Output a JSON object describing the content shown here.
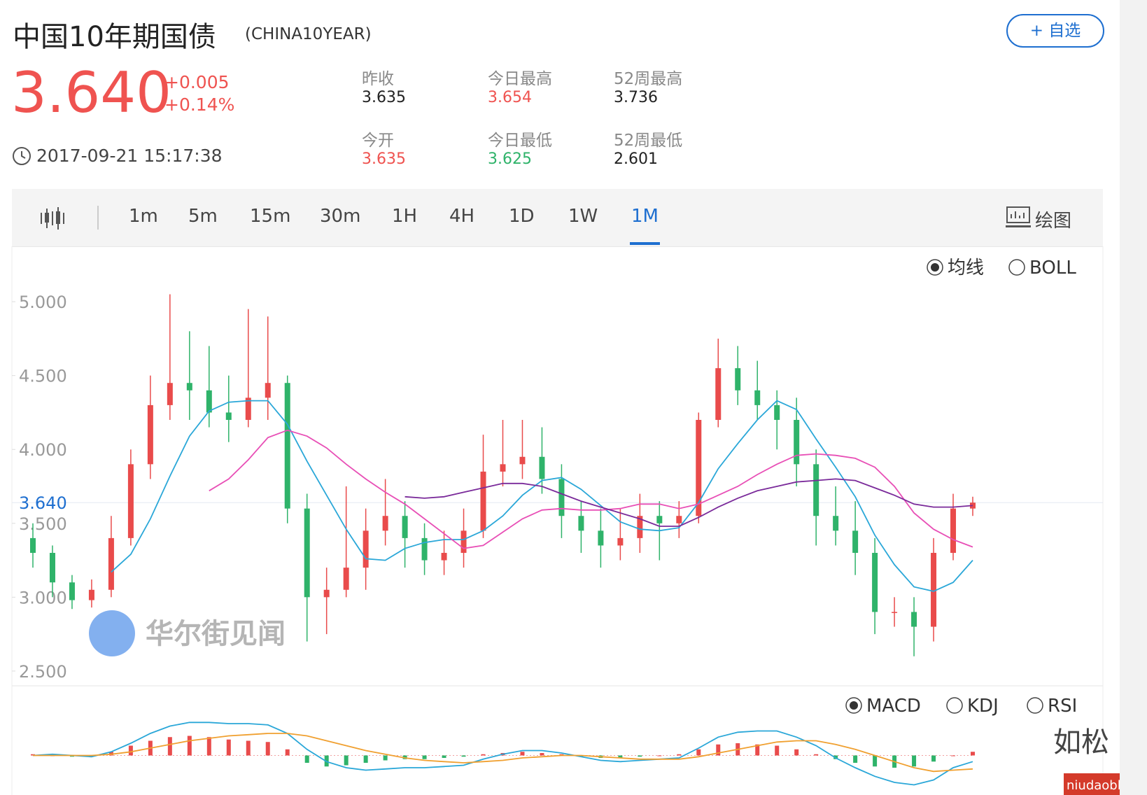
{
  "header": {
    "title": "中国10年期国债",
    "code": "(CHINA10YEAR)",
    "price": "3.640",
    "change": "+0.005",
    "change_pct": "+0.14%",
    "time": "2017-09-21 15:17:38",
    "add_button": "+ 自选",
    "stats": [
      {
        "label": "昨收",
        "value": "3.635"
      },
      {
        "label": "今日最高",
        "value": "3.654"
      },
      {
        "label": "52周最高",
        "value": "3.736"
      },
      {
        "label": "今开",
        "value": "3.635"
      },
      {
        "label": "今日最低",
        "value": "3.625"
      },
      {
        "label": "52周最低",
        "value": "2.601"
      }
    ]
  },
  "toolbar": {
    "tabs": [
      "1m",
      "5m",
      "15m",
      "30m",
      "1H",
      "4H",
      "1D",
      "1W",
      "1M"
    ],
    "active": "1M",
    "draw": "绘图"
  },
  "overlays": {
    "main": [
      "均线",
      "BOLL"
    ],
    "main_selected": "均线",
    "sub": [
      "MACD",
      "KDJ",
      "RSI"
    ],
    "sub_selected": "MACD"
  },
  "watermark": "华尔街见闻",
  "corner_text": "如松",
  "site": "niudaoblog.com",
  "chart_data": {
    "type": "candlestick",
    "ylim": [
      2.4,
      5.1
    ],
    "yticks": [
      {
        "value": 5,
        "label": "5.000"
      },
      {
        "value": 4.5,
        "label": "4.500"
      },
      {
        "value": 4,
        "label": "4.000"
      },
      {
        "value": 3.5,
        "label": "3.500"
      },
      {
        "value": 3,
        "label": "3.000"
      },
      {
        "value": 2.5,
        "label": "2.500"
      }
    ],
    "last": {
      "value": 3.64,
      "label": "3.640"
    },
    "up_color": "#e94b4b",
    "down_color": "#2fb36a",
    "candles": [
      [
        3.4,
        3.5,
        3.2,
        3.3
      ],
      [
        3.3,
        3.35,
        3.0,
        3.1
      ],
      [
        3.1,
        3.15,
        2.92,
        2.98
      ],
      [
        2.98,
        3.12,
        2.93,
        3.05
      ],
      [
        3.05,
        3.55,
        3.0,
        3.4
      ],
      [
        3.4,
        4.0,
        3.35,
        3.9
      ],
      [
        3.9,
        4.5,
        3.8,
        4.3
      ],
      [
        4.3,
        5.05,
        4.2,
        4.45
      ],
      [
        4.45,
        4.8,
        4.2,
        4.4
      ],
      [
        4.4,
        4.7,
        4.15,
        4.25
      ],
      [
        4.25,
        4.5,
        4.05,
        4.2
      ],
      [
        4.2,
        4.95,
        4.15,
        4.35
      ],
      [
        4.35,
        4.9,
        4.2,
        4.45
      ],
      [
        4.45,
        4.5,
        3.5,
        3.6
      ],
      [
        3.6,
        3.7,
        2.7,
        3.0
      ],
      [
        3.0,
        3.2,
        2.75,
        3.05
      ],
      [
        3.05,
        3.75,
        3.0,
        3.2
      ],
      [
        3.2,
        3.6,
        3.05,
        3.45
      ],
      [
        3.45,
        3.8,
        3.35,
        3.55
      ],
      [
        3.55,
        3.65,
        3.2,
        3.4
      ],
      [
        3.4,
        3.5,
        3.15,
        3.25
      ],
      [
        3.25,
        3.45,
        3.15,
        3.3
      ],
      [
        3.3,
        3.6,
        3.2,
        3.45
      ],
      [
        3.45,
        4.1,
        3.4,
        3.85
      ],
      [
        3.85,
        4.2,
        3.75,
        3.9
      ],
      [
        3.9,
        4.2,
        3.8,
        3.95
      ],
      [
        3.95,
        4.15,
        3.7,
        3.8
      ],
      [
        3.8,
        3.9,
        3.4,
        3.55
      ],
      [
        3.55,
        3.65,
        3.3,
        3.45
      ],
      [
        3.45,
        3.6,
        3.2,
        3.35
      ],
      [
        3.35,
        3.6,
        3.25,
        3.4
      ],
      [
        3.4,
        3.7,
        3.3,
        3.55
      ],
      [
        3.55,
        3.65,
        3.25,
        3.5
      ],
      [
        3.5,
        3.65,
        3.4,
        3.55
      ],
      [
        3.55,
        4.25,
        3.5,
        4.2
      ],
      [
        4.2,
        4.75,
        4.15,
        4.55
      ],
      [
        4.55,
        4.7,
        4.3,
        4.4
      ],
      [
        4.4,
        4.6,
        4.2,
        4.3
      ],
      [
        4.3,
        4.4,
        4.0,
        4.2
      ],
      [
        4.2,
        4.35,
        3.75,
        3.9
      ],
      [
        3.9,
        4.0,
        3.35,
        3.55
      ],
      [
        3.55,
        3.75,
        3.35,
        3.45
      ],
      [
        3.45,
        3.65,
        3.15,
        3.3
      ],
      [
        3.3,
        3.4,
        2.75,
        2.9
      ],
      [
        2.9,
        3.0,
        2.8,
        2.9
      ],
      [
        2.9,
        3.0,
        2.6,
        2.8
      ],
      [
        2.8,
        3.4,
        2.7,
        3.3
      ],
      [
        3.3,
        3.7,
        3.25,
        3.6
      ],
      [
        3.6,
        3.68,
        3.55,
        3.64
      ]
    ],
    "lines": [
      {
        "color": "#2aa7d8",
        "values": [
          null,
          null,
          null,
          null,
          3.17,
          3.29,
          3.53,
          3.82,
          4.09,
          4.26,
          4.32,
          4.33,
          4.33,
          4.17,
          3.92,
          3.69,
          3.46,
          3.26,
          3.25,
          3.33,
          3.37,
          3.39,
          3.39,
          3.45,
          3.55,
          3.69,
          3.79,
          3.81,
          3.73,
          3.62,
          3.51,
          3.46,
          3.45,
          3.47,
          3.64,
          3.87,
          4.04,
          4.2,
          4.33,
          4.27,
          4.07,
          3.88,
          3.68,
          3.42,
          3.22,
          3.07,
          3.04,
          3.1,
          3.25
        ]
      },
      {
        "color": "#e84fb6",
        "values": [
          null,
          null,
          null,
          null,
          null,
          null,
          null,
          null,
          null,
          3.72,
          3.8,
          3.93,
          4.08,
          4.13,
          4.09,
          4.01,
          3.9,
          3.8,
          3.71,
          3.63,
          3.53,
          3.43,
          3.33,
          3.35,
          3.44,
          3.53,
          3.59,
          3.6,
          3.59,
          3.59,
          3.6,
          3.63,
          3.63,
          3.6,
          3.63,
          3.69,
          3.75,
          3.83,
          3.9,
          3.96,
          3.97,
          3.96,
          3.94,
          3.88,
          3.75,
          3.57,
          3.46,
          3.39,
          3.34
        ]
      },
      {
        "color": "#7a2a9a",
        "values": [
          null,
          null,
          null,
          null,
          null,
          null,
          null,
          null,
          null,
          null,
          null,
          null,
          null,
          null,
          null,
          null,
          null,
          null,
          null,
          3.68,
          3.67,
          3.68,
          3.71,
          3.74,
          3.77,
          3.77,
          3.75,
          3.7,
          3.65,
          3.61,
          3.57,
          3.53,
          3.48,
          3.48,
          3.54,
          3.61,
          3.67,
          3.72,
          3.75,
          3.78,
          3.79,
          3.8,
          3.79,
          3.74,
          3.69,
          3.63,
          3.61,
          3.61,
          3.62
        ]
      }
    ],
    "macd_ylim": [
      -0.3,
      0.3
    ],
    "macd_hist": [
      0.01,
      0,
      -0.01,
      0,
      0.03,
      0.08,
      0.12,
      0.15,
      0.16,
      0.15,
      0.13,
      0.12,
      0.11,
      0.05,
      -0.06,
      -0.09,
      -0.08,
      -0.06,
      -0.04,
      -0.03,
      -0.03,
      -0.02,
      -0.01,
      0.01,
      0.02,
      0.03,
      0.02,
      0.01,
      -0.01,
      -0.02,
      -0.02,
      -0.01,
      0,
      0.01,
      0.05,
      0.09,
      0.1,
      0.09,
      0.08,
      0.05,
      0.01,
      -0.03,
      -0.06,
      -0.09,
      -0.1,
      -0.09,
      -0.05,
      0,
      0.03
    ],
    "macd_lines": [
      {
        "color": "#2aa7d8",
        "values": [
          0,
          0.01,
          0,
          -0.01,
          0.03,
          0.1,
          0.18,
          0.24,
          0.27,
          0.27,
          0.26,
          0.26,
          0.25,
          0.18,
          0.05,
          -0.05,
          -0.1,
          -0.12,
          -0.11,
          -0.1,
          -0.1,
          -0.09,
          -0.08,
          -0.03,
          0.01,
          0.04,
          0.04,
          0.02,
          -0.01,
          -0.04,
          -0.05,
          -0.04,
          -0.03,
          -0.02,
          0.06,
          0.15,
          0.19,
          0.2,
          0.2,
          0.15,
          0.08,
          -0.02,
          -0.1,
          -0.17,
          -0.22,
          -0.24,
          -0.2,
          -0.1,
          -0.05
        ]
      },
      {
        "color": "#f0a030",
        "values": [
          0,
          0,
          0,
          0,
          0.01,
          0.03,
          0.06,
          0.09,
          0.12,
          0.14,
          0.16,
          0.17,
          0.18,
          0.18,
          0.16,
          0.12,
          0.08,
          0.04,
          0.01,
          -0.02,
          -0.04,
          -0.05,
          -0.06,
          -0.05,
          -0.04,
          -0.02,
          -0.01,
          0,
          0,
          -0.01,
          -0.02,
          -0.03,
          -0.03,
          -0.03,
          -0.01,
          0.02,
          0.05,
          0.08,
          0.11,
          0.12,
          0.12,
          0.09,
          0.05,
          0,
          -0.05,
          -0.1,
          -0.13,
          -0.12,
          -0.11
        ]
      }
    ]
  }
}
